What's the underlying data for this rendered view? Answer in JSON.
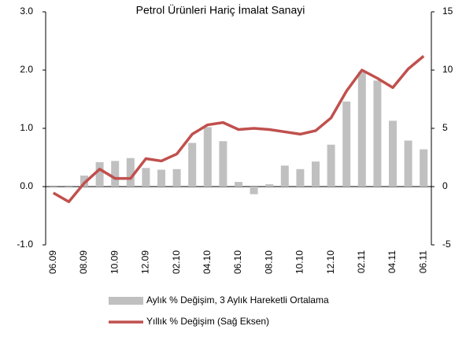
{
  "chart_data": {
    "type": "combo",
    "title": "Petrol Ürünleri Hariç İmalat Sanayi",
    "categories": [
      "06.09",
      null,
      "08.09",
      null,
      "10.09",
      null,
      "12.09",
      null,
      "02.10",
      null,
      "04.10",
      null,
      "06.10",
      null,
      "08.10",
      null,
      "10.10",
      null,
      "12.10",
      null,
      "02.11",
      null,
      "04.11",
      null,
      "06.11"
    ],
    "series": [
      {
        "name": "Aylık % Değişim, 3 Aylık Hareketli Ortalama",
        "type": "bar",
        "color": "#c0c0c0",
        "values": [
          -0.02,
          -0.02,
          0.19,
          0.42,
          0.44,
          0.49,
          0.32,
          0.29,
          0.3,
          0.75,
          1.02,
          0.78,
          0.08,
          -0.13,
          0.04,
          0.36,
          0.3,
          0.43,
          0.72,
          1.46,
          1.97,
          1.82,
          1.13,
          0.79,
          0.64
        ]
      },
      {
        "name": "Yıllık % Değişim (Sağ Eksen)",
        "type": "line",
        "axis": "y2",
        "color": "#c0504d",
        "values": [
          -0.54,
          -1.3,
          0.3,
          1.5,
          0.7,
          0.7,
          2.4,
          2.2,
          2.8,
          4.5,
          5.3,
          5.5,
          4.9,
          5.0,
          4.9,
          4.7,
          4.5,
          4.8,
          5.9,
          8.2,
          10.0,
          9.3,
          8.5,
          10.1,
          11.2
        ]
      }
    ],
    "ylim": [
      -1,
      3
    ],
    "yticks": [
      {
        "value": -1,
        "label": "-1.0"
      },
      {
        "value": 0,
        "label": "0.0"
      },
      {
        "value": 1,
        "label": "1.0"
      },
      {
        "value": 2,
        "label": "2.0"
      },
      {
        "value": 3,
        "label": "3.0"
      }
    ],
    "y2lim": [
      -5,
      15
    ],
    "y2ticks": [
      -5,
      0,
      5,
      10,
      15
    ],
    "grid": false
  }
}
